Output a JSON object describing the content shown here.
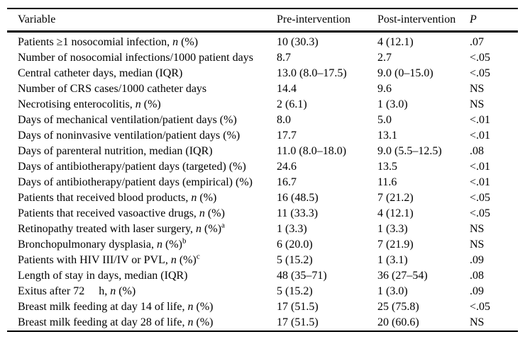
{
  "table": {
    "columns": [
      "Variable",
      "Pre-intervention",
      "Post-intervention",
      "P"
    ],
    "rows": [
      {
        "variable": "Patients ≥1 nosocomial infection, n (%)",
        "sup": "",
        "pre": "10 (30.3)",
        "post": "4 (12.1)",
        "p": ".07"
      },
      {
        "variable": "Number of nosocomial infections/1000 patient days",
        "sup": "",
        "pre": "8.7",
        "post": "2.7",
        "p": "<.05"
      },
      {
        "variable": "Central catheter days, median (IQR)",
        "sup": "",
        "pre": "13.0 (8.0–17.5)",
        "post": "9.0 (0–15.0)",
        "p": "<.05"
      },
      {
        "variable": "Number of CRS cases/1000 catheter days",
        "sup": "",
        "pre": "14.4",
        "post": "9.6",
        "p": "NS"
      },
      {
        "variable": "Necrotising enterocolitis, n (%)",
        "sup": "",
        "pre": "2 (6.1)",
        "post": "1 (3.0)",
        "p": "NS"
      },
      {
        "variable": "Days of mechanical ventilation/patient days (%)",
        "sup": "",
        "pre": "8.0",
        "post": "5.0",
        "p": "<.01"
      },
      {
        "variable": "Days of noninvasive ventilation/patient days (%)",
        "sup": "",
        "pre": "17.7",
        "post": "13.1",
        "p": "<.01"
      },
      {
        "variable": "Days of parenteral nutrition, median (IQR)",
        "sup": "",
        "pre": "11.0 (8.0–18.0)",
        "post": "9.0 (5.5–12.5)",
        "p": ".08"
      },
      {
        "variable": "Days of antibiotherapy/patient days (targeted) (%)",
        "sup": "",
        "pre": "24.6",
        "post": "13.5",
        "p": "<.01"
      },
      {
        "variable": "Days of antibiotherapy/patient days (empirical) (%)",
        "sup": "",
        "pre": "16.7",
        "post": "11.6",
        "p": "<.01"
      },
      {
        "variable": "Patients that received blood products, n (%)",
        "sup": "",
        "pre": "16 (48.5)",
        "post": "7 (21.2)",
        "p": "<.05"
      },
      {
        "variable": "Patients that received vasoactive drugs, n (%)",
        "sup": "",
        "pre": "11 (33.3)",
        "post": "4 (12.1)",
        "p": "<.05"
      },
      {
        "variable": "Retinopathy treated with laser surgery, n (%)",
        "sup": "a",
        "pre": "1 (3.3)",
        "post": "1 (3.3)",
        "p": "NS"
      },
      {
        "variable": "Bronchopulmonary dysplasia, n (%)",
        "sup": "b",
        "pre": "6 (20.0)",
        "post": "7 (21.9)",
        "p": "NS"
      },
      {
        "variable": "Patients with HIV III/IV or PVL, n (%)",
        "sup": "c",
        "pre": "5 (15.2)",
        "post": "1 (3.1)",
        "p": ".09"
      },
      {
        "variable": "Length of stay in days, median (IQR)",
        "sup": "",
        "pre": "48 (35–71)",
        "post": "36 (27–54)",
        "p": ".08"
      },
      {
        "variable": "Exitus after 72  h, n (%)",
        "sup": "",
        "pre": "5 (15.2)",
        "post": "1 (3.0)",
        "p": ".09"
      },
      {
        "variable": "Breast milk feeding at day 14 of life, n (%)",
        "sup": "",
        "pre": "17 (51.5)",
        "post": "25 (75.8)",
        "p": "<.05"
      },
      {
        "variable": "Breast milk feeding at day 28 of life, n (%)",
        "sup": "",
        "pre": "17 (51.5)",
        "post": "20 (60.6)",
        "p": "NS"
      }
    ]
  }
}
